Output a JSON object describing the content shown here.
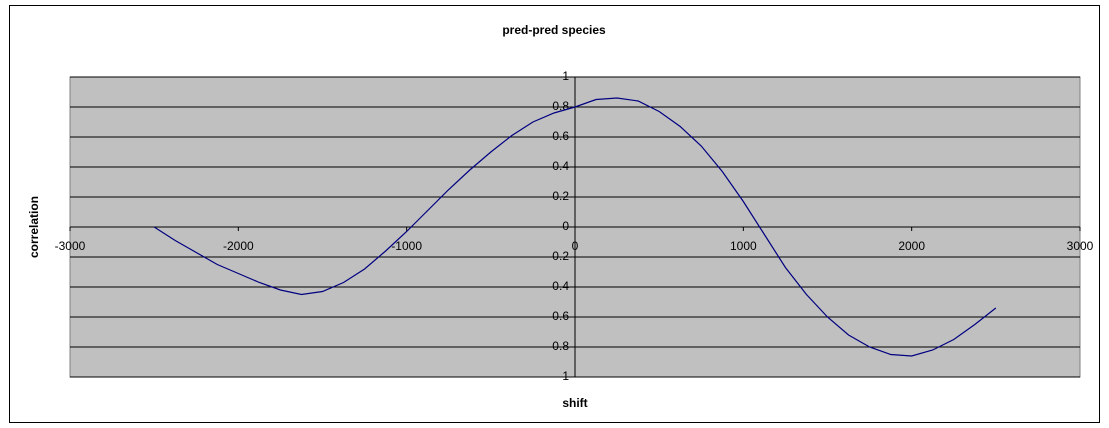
{
  "chart_data": {
    "type": "line",
    "title": "pred-pred species",
    "xlabel": "shift",
    "ylabel": "correlation",
    "x": [
      -2500,
      -2375,
      -2250,
      -2125,
      -2000,
      -1875,
      -1750,
      -1625,
      -1500,
      -1375,
      -1250,
      -1125,
      -1000,
      -875,
      -750,
      -625,
      -500,
      -375,
      -250,
      -125,
      0,
      125,
      250,
      375,
      500,
      625,
      750,
      875,
      1000,
      1125,
      1250,
      1375,
      1500,
      1625,
      1750,
      1875,
      2000,
      2125,
      2250,
      2375,
      2500
    ],
    "series": [
      {
        "name": "correlation",
        "color": "#000080",
        "values": [
          0,
          -0.09,
          -0.17,
          -0.25,
          -0.31,
          -0.37,
          -0.42,
          -0.45,
          -0.43,
          -0.37,
          -0.28,
          -0.16,
          -0.03,
          0.11,
          0.25,
          0.38,
          0.5,
          0.61,
          0.7,
          0.76,
          0.8,
          0.85,
          0.86,
          0.84,
          0.77,
          0.67,
          0.54,
          0.37,
          0.17,
          -0.05,
          -0.27,
          -0.45,
          -0.6,
          -0.72,
          -0.8,
          -0.85,
          -0.86,
          -0.82,
          -0.75,
          -0.65,
          -0.54
        ]
      }
    ],
    "xlim": [
      -3000,
      3000
    ],
    "xticks": [
      -3000,
      -2000,
      -1000,
      0,
      1000,
      2000,
      3000
    ],
    "ylim": [
      -1,
      1
    ],
    "yticks": [
      -1,
      -0.8,
      -0.6,
      -0.4,
      -0.2,
      0,
      0.2,
      0.4,
      0.6,
      0.8,
      1
    ],
    "grid": true,
    "plot_background": "#c0c0c0"
  }
}
